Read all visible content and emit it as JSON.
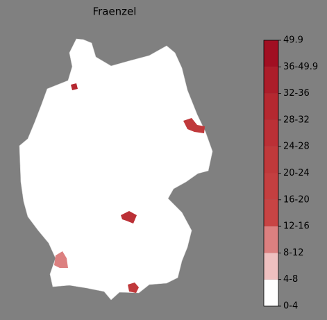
{
  "title": "Fraenzel",
  "colorbar": {
    "labels": [
      "0-4",
      "4-8",
      "8-12",
      "12-16",
      "16-20",
      "20-24",
      "24-28",
      "28-32",
      "32-36",
      "36-49.9",
      "49.9"
    ],
    "colors": [
      "#ffffff",
      "#efc0c0",
      "#dc8080",
      "#c84444",
      "#c43f40",
      "#c0393b",
      "#bb3036",
      "#b52830",
      "#ac1d2a",
      "#a10f22"
    ]
  }
}
